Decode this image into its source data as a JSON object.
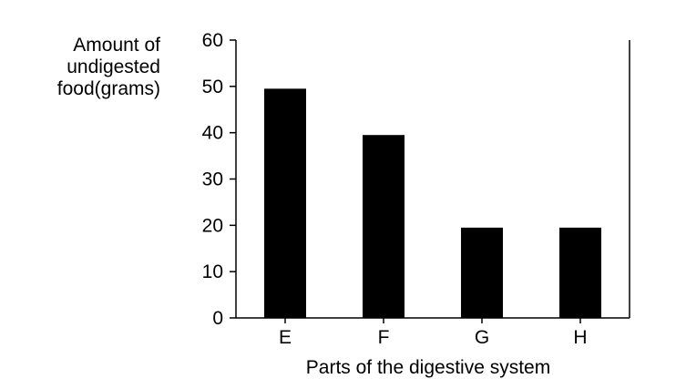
{
  "chart_data": {
    "type": "bar",
    "categories": [
      "E",
      "F",
      "G",
      "H"
    ],
    "values": [
      49.5,
      39.5,
      19.5,
      19.5
    ],
    "title": "",
    "ylabel_lines": [
      "Amount of",
      "undigested",
      "food(grams)"
    ],
    "xlabel": "Parts of the digestive system",
    "ylim": [
      0,
      60
    ],
    "yticks": [
      0,
      10,
      20,
      30,
      40,
      50,
      60
    ],
    "grid": false,
    "legend": "none",
    "bar_color": "#000000",
    "axis_color": "#000000"
  }
}
